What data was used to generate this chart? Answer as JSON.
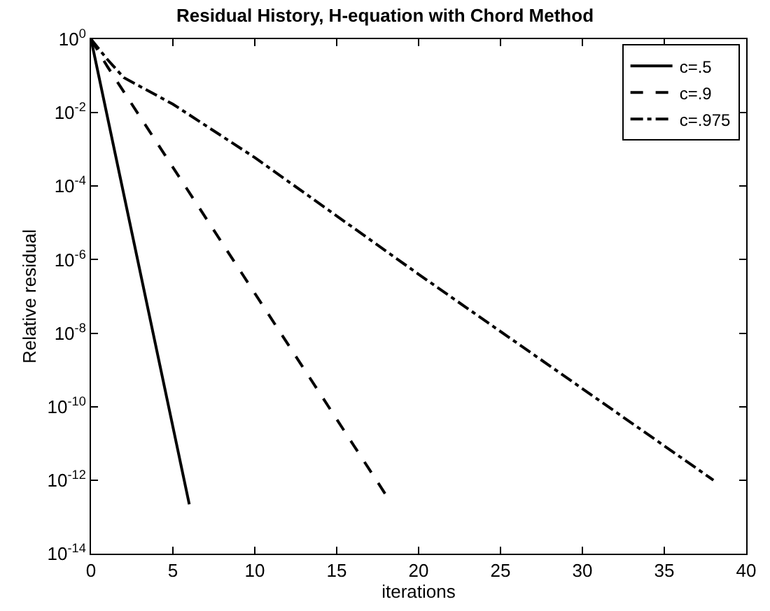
{
  "chart_data": {
    "type": "line",
    "title": "Residual History, H-equation with Chord Method",
    "xlabel": "iterations",
    "ylabel": "Relative residual",
    "log": "y",
    "grid": false,
    "legend": "top right",
    "marker": "none",
    "xlim": [
      0,
      40
    ],
    "xticks": [
      0,
      5,
      10,
      15,
      20,
      25,
      30,
      35,
      40
    ],
    "ylim": [
      1e-14,
      1
    ],
    "yticks": [
      {
        "value": 1e-14,
        "label": "10$^{-14}$"
      },
      {
        "value": 1e-12,
        "label": "10$^{-12}$"
      },
      {
        "value": 1e-10,
        "label": "10$^{-10}$"
      },
      {
        "value": 1e-08,
        "label": "10$^{-8}$"
      },
      {
        "value": 1e-06,
        "label": "10$^{-6}$"
      },
      {
        "value": 0.0001,
        "label": "10$^{-4}$"
      },
      {
        "value": 0.01,
        "label": "10$^{-2}$"
      },
      {
        "value": 1,
        "label": "10$^{0}$"
      }
    ],
    "series": [
      {
        "name": "c=.5",
        "color": "#000000",
        "line_style": "solid",
        "x": [
          0,
          6
        ],
        "values": [
          1,
          2.2e-13
        ]
      },
      {
        "name": "c=.9",
        "color": "#000000",
        "line_style": "dashed",
        "x": [
          0,
          1,
          18
        ],
        "values": [
          1,
          0.18,
          4e-13
        ]
      },
      {
        "name": "c=.975",
        "color": "#000000",
        "line_style": "dashdot",
        "x": [
          0,
          1,
          2,
          5,
          10,
          20,
          38
        ],
        "values": [
          1,
          0.28,
          0.09,
          0.017,
          0.0006,
          4e-07,
          1e-12
        ]
      }
    ]
  }
}
